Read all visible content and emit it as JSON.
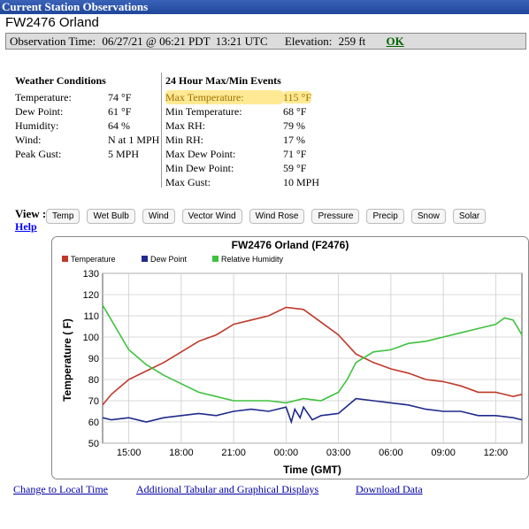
{
  "header": {
    "title": "Current Station Observations",
    "station": "FW2476 Orland"
  },
  "obs": {
    "time_label": "Observation Time:",
    "time": "06/27/21 @ 06:21 PDT  13:21 UTC",
    "elev_label": "Elevation:",
    "elev": "259 ft",
    "ok": "OK"
  },
  "conditions": {
    "title": "Weather Conditions",
    "rows": [
      {
        "k": "Temperature:",
        "v": "74 °F"
      },
      {
        "k": "Dew Point:",
        "v": "61 °F"
      },
      {
        "k": "Humidity:",
        "v": "64 %"
      },
      {
        "k": "Wind:",
        "v": "N at 1 MPH"
      },
      {
        "k": "Peak Gust:",
        "v": "5 MPH"
      }
    ]
  },
  "events": {
    "title": "24 Hour Max/Min Events",
    "rows": [
      {
        "k": "Max Temperature:",
        "v": "115 °F"
      },
      {
        "k": "Min Temperature:",
        "v": "68 °F"
      },
      {
        "k": "Max RH:",
        "v": "79 %"
      },
      {
        "k": "Min RH:",
        "v": "17 %"
      },
      {
        "k": "Max Dew Point:",
        "v": "71 °F"
      },
      {
        "k": "Min Dew Point:",
        "v": "59 °F"
      },
      {
        "k": "Max Gust:",
        "v": "10 MPH"
      }
    ]
  },
  "view": {
    "label": "View :",
    "buttons": [
      "Temp",
      "Wet Bulb",
      "Wind",
      "Vector Wind",
      "Wind Rose",
      "Pressure",
      "Precip",
      "Snow",
      "Solar"
    ],
    "help": "Help"
  },
  "footer": {
    "local": "Change to Local Time",
    "additional": "Additional Tabular and Graphical Displays",
    "download": "Download Data"
  },
  "colors": {
    "temp": "#c0392b",
    "dew": "#1f2a8a",
    "rh": "#3ec23e",
    "highlight": "#ffd83c"
  },
  "chart_data": {
    "type": "line",
    "title": "FW2476 Orland (F2476)",
    "xlabel": "Time (GMT)",
    "ylabel": "Temperature ( F)",
    "ylim": [
      50,
      130
    ],
    "yticks": [
      50,
      60,
      70,
      80,
      90,
      100,
      110,
      120,
      130
    ],
    "xlim": [
      13.5,
      37.5
    ],
    "xticks": [
      15,
      18,
      21,
      24,
      27,
      30,
      33,
      36
    ],
    "xtick_labels": [
      "15:00",
      "18:00",
      "21:00",
      "00:00",
      "03:00",
      "06:00",
      "09:00",
      "12:00"
    ],
    "grid": true,
    "legend": "top-left",
    "series": [
      {
        "name": "Temperature",
        "color": "#c0392b",
        "x": [
          13.5,
          14,
          15,
          16,
          17,
          18,
          19,
          20,
          21,
          22,
          23,
          24,
          25,
          26,
          27,
          28,
          29,
          30,
          31,
          32,
          33,
          34,
          35,
          36,
          37,
          37.5
        ],
        "y": [
          68,
          73,
          80,
          84,
          88,
          93,
          98,
          101,
          106,
          108,
          110,
          114,
          113,
          107,
          101,
          92,
          88,
          85,
          83,
          80,
          79,
          77,
          74,
          74,
          72,
          73
        ]
      },
      {
        "name": "Dew Point",
        "color": "#1f2a8a",
        "x": [
          13.5,
          14,
          15,
          16,
          17,
          18,
          19,
          20,
          21,
          22,
          23,
          24,
          24.3,
          24.5,
          24.8,
          25,
          25.5,
          26,
          27,
          28,
          29,
          30,
          31,
          32,
          33,
          34,
          35,
          36,
          37,
          37.5
        ],
        "y": [
          62,
          61,
          62,
          60,
          62,
          63,
          64,
          63,
          65,
          66,
          65,
          67,
          60,
          66,
          62,
          67,
          61,
          63,
          64,
          71,
          70,
          69,
          68,
          66,
          65,
          65,
          63,
          63,
          62,
          61
        ]
      },
      {
        "name": "Relative Humidity",
        "color": "#3ec23e",
        "x": [
          13.5,
          14,
          15,
          16,
          17,
          18,
          19,
          20,
          21,
          22,
          23,
          24,
          25,
          26,
          27,
          27.5,
          28,
          29,
          30,
          31,
          32,
          33,
          34,
          35,
          36,
          36.5,
          37,
          37.5
        ],
        "y": [
          115,
          108,
          94,
          87,
          82,
          78,
          74,
          72,
          70,
          70,
          70,
          69,
          71,
          70,
          74,
          80,
          88,
          93,
          94,
          97,
          98,
          100,
          102,
          104,
          106,
          109,
          108,
          101
        ]
      }
    ]
  }
}
